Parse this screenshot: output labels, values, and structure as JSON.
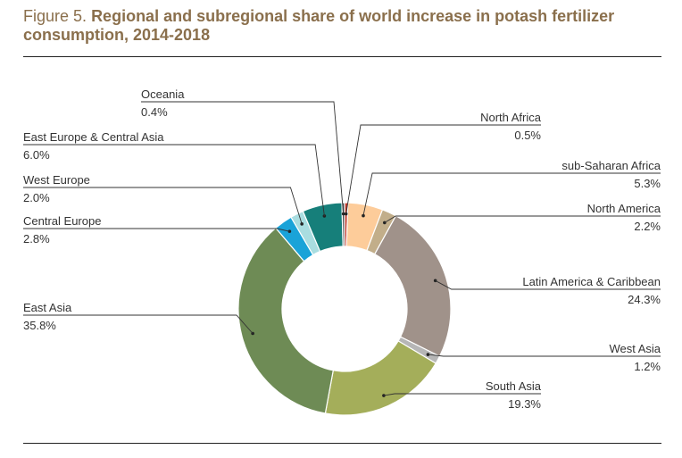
{
  "figure": {
    "prefix": "Figure 5.",
    "title": "Regional and subregional share of world increase in potash fertilizer consumption, 2014-2018"
  },
  "chart_data": {
    "type": "pie",
    "variant": "donut",
    "title": "Regional and subregional share of world increase in potash fertilizer consumption, 2014-2018",
    "unit": "%",
    "slices": [
      {
        "label": "North Africa",
        "value": 0.5,
        "display": "0.5%",
        "color": "#c0392b"
      },
      {
        "label": "sub-Saharan Africa",
        "value": 5.3,
        "display": "5.3%",
        "color": "#fdcc9a"
      },
      {
        "label": "North America",
        "value": 2.2,
        "display": "2.2%",
        "color": "#c2ae8a"
      },
      {
        "label": "Latin America & Caribbean",
        "value": 24.3,
        "display": "24.3%",
        "color": "#a0928a"
      },
      {
        "label": "West Asia",
        "value": 1.2,
        "display": "1.2%",
        "color": "#b6b6b6"
      },
      {
        "label": "South Asia",
        "value": 19.3,
        "display": "19.3%",
        "color": "#a4ae5a"
      },
      {
        "label": "East Asia",
        "value": 35.8,
        "display": "35.8%",
        "color": "#6e8b55"
      },
      {
        "label": "Central Europe",
        "value": 2.8,
        "display": "2.8%",
        "color": "#1aa3d8"
      },
      {
        "label": "West Europe",
        "value": 2.0,
        "display": "2.0%",
        "color": "#a9dde0"
      },
      {
        "label": "East Europe & Central Asia",
        "value": 6.0,
        "display": "6.0%",
        "color": "#167f7a"
      },
      {
        "label": "Oceania",
        "value": 0.4,
        "display": "0.4%",
        "color": "#4d4d4d"
      }
    ]
  }
}
